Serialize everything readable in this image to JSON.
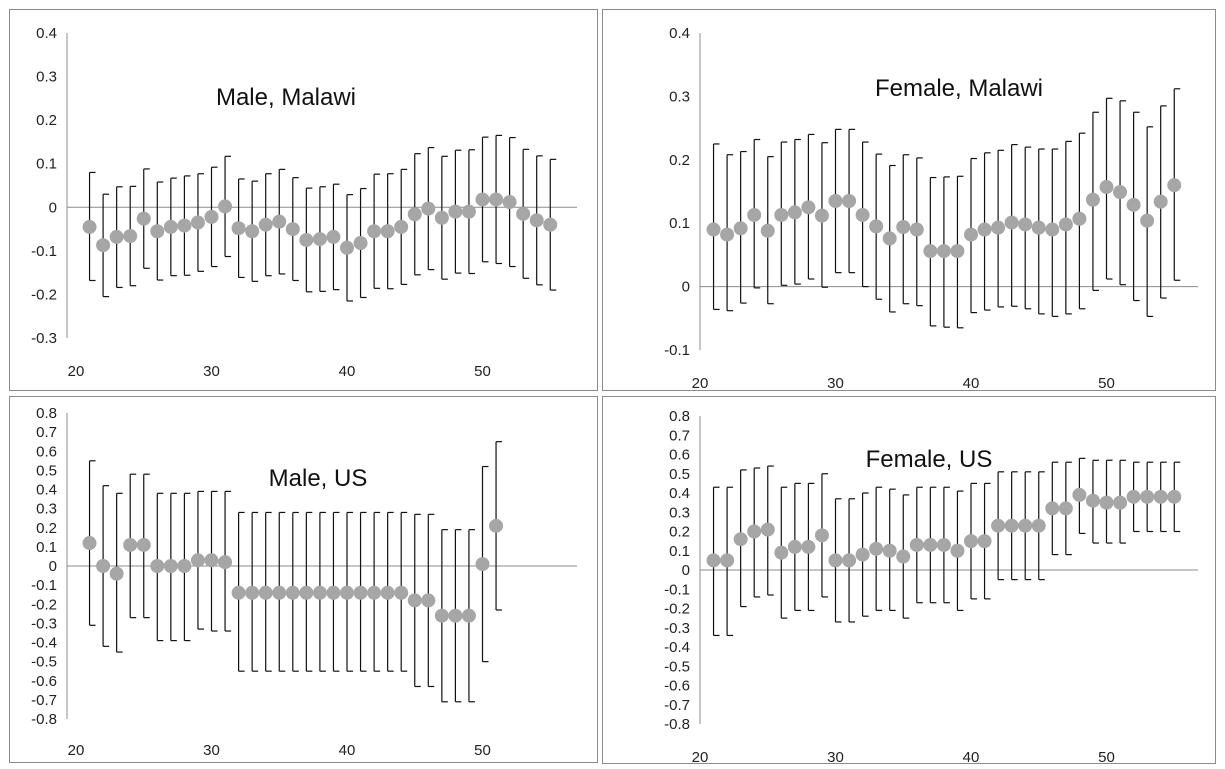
{
  "colors": {
    "marker": "#a6a6a6",
    "errorbar": "#111111",
    "axis": "#8c8c8c",
    "text": "#222222"
  },
  "chart_data": [
    {
      "type": "scatter",
      "title": "Male, Malawi",
      "ylim": [
        -0.3,
        0.4
      ],
      "yticks": [
        -0.3,
        -0.2,
        -0.1,
        0,
        0.1,
        0.2,
        0.3,
        0.4
      ],
      "ytick_labels": [
        "-0.3",
        "-0.2",
        "-0.1",
        "0",
        "0.1",
        "0.2",
        "0.3",
        "0.4"
      ],
      "xlim": [
        20,
        57
      ],
      "xticks": [
        20,
        30,
        40,
        50
      ],
      "xtick_labels": [
        "20",
        "30",
        "40",
        "50"
      ],
      "grid": false,
      "x": [
        21,
        22,
        23,
        24,
        25,
        26,
        27,
        28,
        29,
        30,
        31,
        32,
        33,
        34,
        35,
        36,
        37,
        38,
        39,
        40,
        41,
        42,
        43,
        44,
        45,
        46,
        47,
        48,
        49,
        50,
        51,
        52,
        53,
        54,
        55
      ],
      "y": [
        -0.045,
        -0.087,
        -0.068,
        -0.066,
        -0.026,
        -0.055,
        -0.045,
        -0.042,
        -0.035,
        -0.022,
        0.002,
        -0.048,
        -0.055,
        -0.04,
        -0.033,
        -0.05,
        -0.075,
        -0.073,
        -0.068,
        -0.093,
        -0.082,
        -0.055,
        -0.055,
        -0.045,
        -0.016,
        -0.003,
        -0.024,
        -0.01,
        -0.01,
        0.018,
        0.018,
        0.012,
        -0.015,
        -0.03,
        -0.04
      ],
      "upper": [
        0.08,
        0.03,
        0.047,
        0.048,
        0.088,
        0.058,
        0.067,
        0.072,
        0.077,
        0.092,
        0.117,
        0.065,
        0.06,
        0.077,
        0.087,
        0.068,
        0.044,
        0.047,
        0.053,
        0.029,
        0.043,
        0.076,
        0.077,
        0.087,
        0.123,
        0.137,
        0.117,
        0.131,
        0.132,
        0.161,
        0.165,
        0.16,
        0.133,
        0.118,
        0.11
      ],
      "lower": [
        -0.168,
        -0.205,
        -0.184,
        -0.18,
        -0.14,
        -0.167,
        -0.157,
        -0.156,
        -0.147,
        -0.136,
        -0.113,
        -0.161,
        -0.17,
        -0.157,
        -0.153,
        -0.168,
        -0.194,
        -0.193,
        -0.189,
        -0.215,
        -0.207,
        -0.186,
        -0.187,
        -0.177,
        -0.155,
        -0.143,
        -0.165,
        -0.151,
        -0.152,
        -0.125,
        -0.129,
        -0.136,
        -0.163,
        -0.178,
        -0.19
      ]
    },
    {
      "type": "scatter",
      "title": "Female, Malawi",
      "ylim": [
        -0.1,
        0.4
      ],
      "yticks": [
        -0.1,
        0,
        0.1,
        0.2,
        0.3,
        0.4
      ],
      "ytick_labels": [
        "-0.1",
        "0",
        "0.1",
        "0.2",
        "0.3",
        "0.4"
      ],
      "xlim": [
        20,
        57
      ],
      "xticks": [
        20,
        30,
        40,
        50
      ],
      "xtick_labels": [
        "20",
        "30",
        "40",
        "50"
      ],
      "grid": false,
      "x": [
        21,
        22,
        23,
        24,
        25,
        26,
        27,
        28,
        29,
        30,
        31,
        32,
        33,
        34,
        35,
        36,
        37,
        38,
        39,
        40,
        41,
        42,
        43,
        44,
        45,
        46,
        47,
        48,
        49,
        50,
        51,
        52,
        53,
        54,
        55
      ],
      "y": [
        0.09,
        0.082,
        0.092,
        0.113,
        0.088,
        0.113,
        0.117,
        0.125,
        0.112,
        0.135,
        0.135,
        0.113,
        0.095,
        0.076,
        0.094,
        0.09,
        0.056,
        0.056,
        0.056,
        0.082,
        0.09,
        0.093,
        0.101,
        0.098,
        0.093,
        0.09,
        0.098,
        0.107,
        0.137,
        0.157,
        0.149,
        0.129,
        0.104,
        0.134,
        0.16
      ],
      "upper": [
        0.225,
        0.208,
        0.213,
        0.232,
        0.205,
        0.228,
        0.232,
        0.24,
        0.227,
        0.248,
        0.248,
        0.228,
        0.209,
        0.191,
        0.208,
        0.203,
        0.172,
        0.173,
        0.174,
        0.202,
        0.211,
        0.215,
        0.224,
        0.22,
        0.217,
        0.217,
        0.229,
        0.242,
        0.275,
        0.297,
        0.293,
        0.275,
        0.252,
        0.285,
        0.312
      ],
      "lower": [
        -0.036,
        -0.038,
        -0.026,
        -0.002,
        -0.027,
        0.002,
        0.004,
        0.012,
        -0.001,
        0.022,
        0.022,
        0.0,
        -0.02,
        -0.04,
        -0.027,
        -0.03,
        -0.062,
        -0.064,
        -0.065,
        -0.041,
        -0.037,
        -0.032,
        -0.031,
        -0.035,
        -0.043,
        -0.047,
        -0.043,
        -0.035,
        -0.006,
        0.012,
        0.003,
        -0.022,
        -0.047,
        -0.018,
        0.01
      ]
    },
    {
      "type": "scatter",
      "title": "Male, US",
      "ylim": [
        -0.8,
        0.8
      ],
      "yticks": [
        -0.8,
        -0.7,
        -0.6,
        -0.5,
        -0.4,
        -0.3,
        -0.2,
        -0.1,
        0,
        0.1,
        0.2,
        0.3,
        0.4,
        0.5,
        0.6,
        0.7,
        0.8
      ],
      "ytick_labels": [
        "-0.8",
        "-0.7",
        "-0.6",
        "-0.5",
        "-0.4",
        "-0.3",
        "-0.2",
        "-0.1",
        "0",
        "0.1",
        "0.2",
        "0.3",
        "0.4",
        "0.5",
        "0.6",
        "0.7",
        "0.8"
      ],
      "xlim": [
        20,
        57
      ],
      "xticks": [
        20,
        30,
        40,
        50
      ],
      "xtick_labels": [
        "20",
        "30",
        "40",
        "50"
      ],
      "grid": false,
      "x": [
        21,
        22,
        23,
        24,
        25,
        26,
        27,
        28,
        29,
        30,
        31,
        32,
        33,
        34,
        35,
        36,
        37,
        38,
        39,
        40,
        41,
        42,
        43,
        44,
        45,
        46,
        47,
        48,
        49,
        50,
        51
      ],
      "y": [
        0.12,
        0.0,
        -0.04,
        0.11,
        0.11,
        0.0,
        0.0,
        0.0,
        0.03,
        0.03,
        0.02,
        -0.14,
        -0.14,
        -0.14,
        -0.14,
        -0.14,
        -0.14,
        -0.14,
        -0.14,
        -0.14,
        -0.14,
        -0.14,
        -0.14,
        -0.14,
        -0.18,
        -0.18,
        -0.26,
        -0.26,
        -0.26,
        0.01,
        0.21
      ],
      "upper": [
        0.55,
        0.42,
        0.38,
        0.48,
        0.48,
        0.38,
        0.38,
        0.38,
        0.39,
        0.39,
        0.39,
        0.28,
        0.28,
        0.28,
        0.28,
        0.28,
        0.28,
        0.28,
        0.28,
        0.28,
        0.28,
        0.28,
        0.28,
        0.28,
        0.27,
        0.27,
        0.19,
        0.19,
        0.19,
        0.52,
        0.65
      ],
      "lower": [
        -0.31,
        -0.42,
        -0.45,
        -0.27,
        -0.27,
        -0.39,
        -0.39,
        -0.39,
        -0.33,
        -0.34,
        -0.34,
        -0.55,
        -0.55,
        -0.55,
        -0.55,
        -0.55,
        -0.55,
        -0.55,
        -0.55,
        -0.55,
        -0.55,
        -0.55,
        -0.55,
        -0.55,
        -0.63,
        -0.63,
        -0.71,
        -0.71,
        -0.71,
        -0.5,
        -0.23
      ]
    },
    {
      "type": "scatter",
      "title": "Female, US",
      "ylim": [
        -0.8,
        0.8
      ],
      "yticks": [
        -0.8,
        -0.7,
        -0.6,
        -0.5,
        -0.4,
        -0.3,
        -0.2,
        -0.1,
        0,
        0.1,
        0.2,
        0.3,
        0.4,
        0.5,
        0.6,
        0.7,
        0.8
      ],
      "ytick_labels": [
        "-0.8",
        "-0.7",
        "-0.6",
        "-0.5",
        "-0.4",
        "-0.3",
        "-0.2",
        "-0.1",
        "0",
        "0.1",
        "0.2",
        "0.3",
        "0.4",
        "0.5",
        "0.6",
        "0.7",
        "0.8"
      ],
      "xlim": [
        20,
        57
      ],
      "xticks": [
        20,
        30,
        40,
        50
      ],
      "xtick_labels": [
        "20",
        "30",
        "40",
        "50"
      ],
      "grid": false,
      "x": [
        21,
        22,
        23,
        24,
        25,
        26,
        27,
        28,
        29,
        30,
        31,
        32,
        33,
        34,
        35,
        36,
        37,
        38,
        39,
        40,
        41,
        42,
        43,
        44,
        45,
        46,
        47,
        48,
        49,
        50,
        51,
        52,
        53,
        54,
        55
      ],
      "y": [
        0.05,
        0.05,
        0.16,
        0.2,
        0.21,
        0.09,
        0.12,
        0.12,
        0.18,
        0.05,
        0.05,
        0.08,
        0.11,
        0.1,
        0.07,
        0.13,
        0.13,
        0.13,
        0.1,
        0.15,
        0.15,
        0.23,
        0.23,
        0.23,
        0.23,
        0.32,
        0.32,
        0.39,
        0.36,
        0.35,
        0.35,
        0.38,
        0.38,
        0.38,
        0.38
      ],
      "upper": [
        0.43,
        0.43,
        0.52,
        0.53,
        0.54,
        0.43,
        0.45,
        0.45,
        0.5,
        0.37,
        0.37,
        0.4,
        0.43,
        0.42,
        0.39,
        0.43,
        0.43,
        0.43,
        0.41,
        0.45,
        0.45,
        0.51,
        0.51,
        0.51,
        0.51,
        0.56,
        0.56,
        0.58,
        0.57,
        0.57,
        0.57,
        0.56,
        0.56,
        0.56,
        0.56
      ],
      "lower": [
        -0.34,
        -0.34,
        -0.19,
        -0.14,
        -0.13,
        -0.25,
        -0.21,
        -0.21,
        -0.14,
        -0.27,
        -0.27,
        -0.24,
        -0.21,
        -0.21,
        -0.25,
        -0.17,
        -0.17,
        -0.17,
        -0.21,
        -0.15,
        -0.15,
        -0.05,
        -0.05,
        -0.05,
        -0.05,
        0.08,
        0.08,
        0.19,
        0.14,
        0.14,
        0.14,
        0.2,
        0.2,
        0.2,
        0.2
      ]
    }
  ]
}
